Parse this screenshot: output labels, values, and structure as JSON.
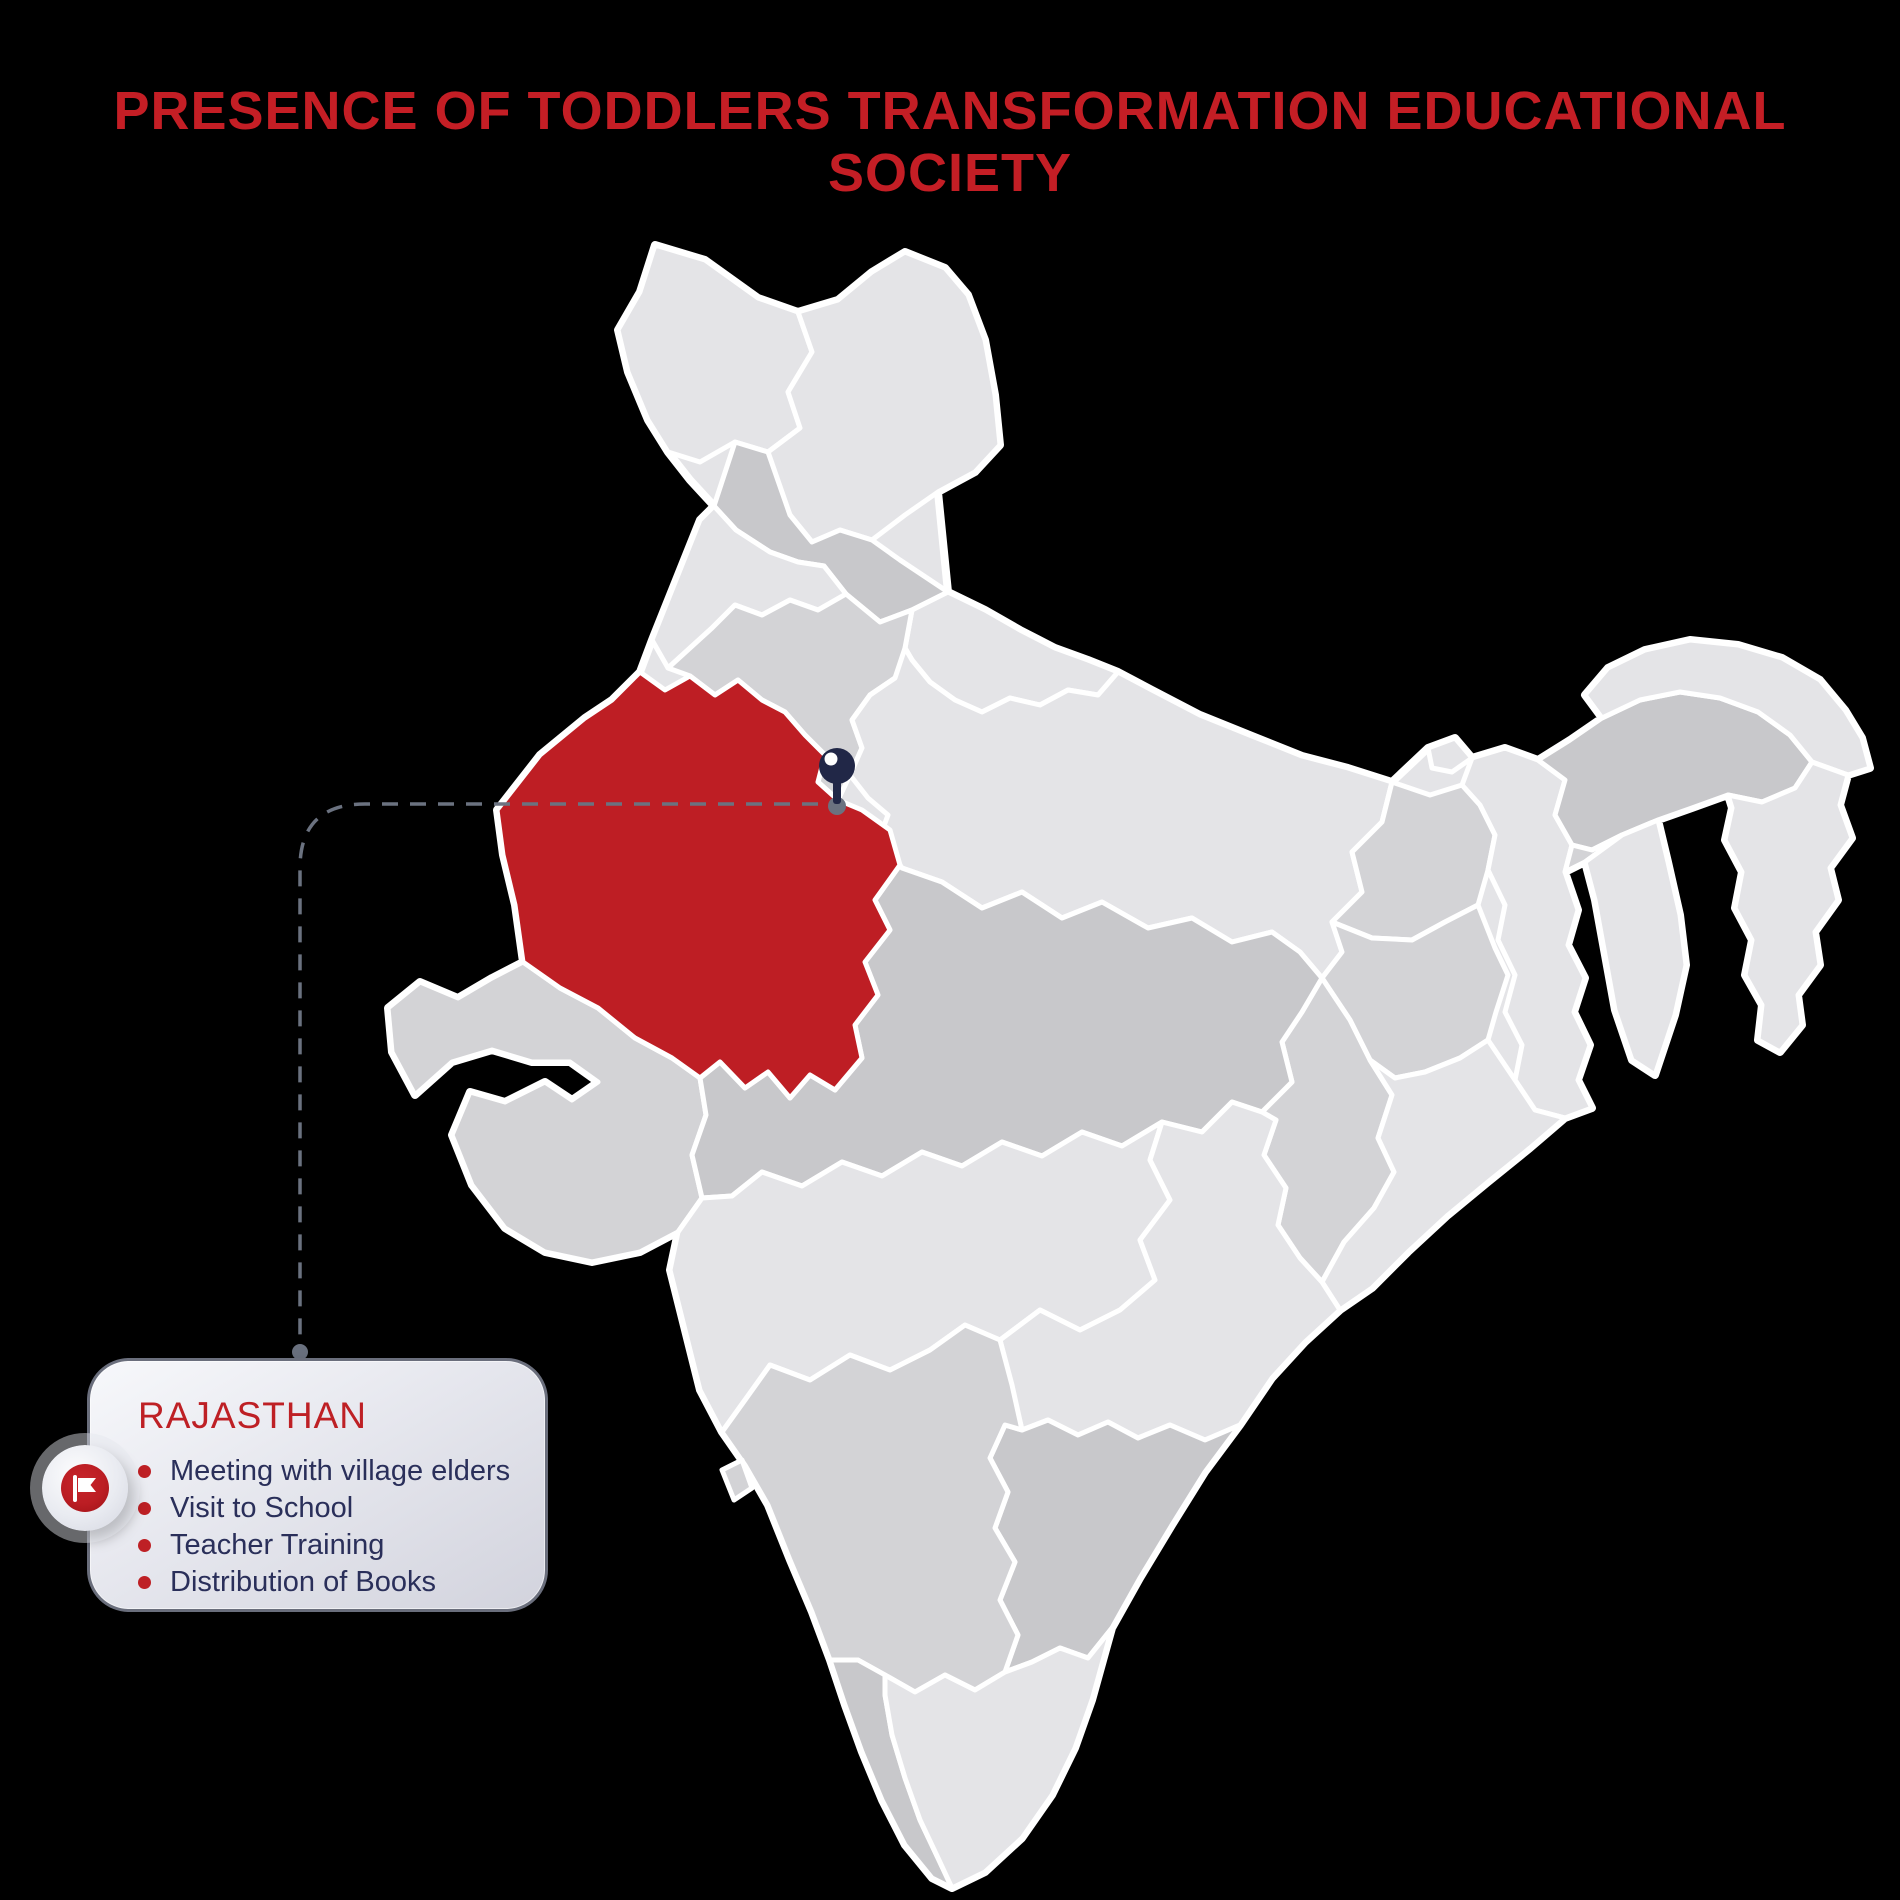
{
  "title": "PRESENCE OF TODDLERS TRANSFORMATION EDUCATIONAL SOCIETY",
  "map": {
    "highlighted_state": "Rajasthan"
  },
  "callout": {
    "region": "RAJASTHAN",
    "items": [
      "Meeting with village elders",
      "Visit to School",
      "Teacher Training",
      "Distribution of Books"
    ]
  },
  "colors": {
    "title_red": "#C41E25",
    "state_red": "#BE1E24",
    "card_title_red": "#BE2025",
    "bullet_red": "#BE2025",
    "text_navy": "#2A2F5A",
    "pin_navy": "#212747",
    "connector_gray": "#6B7280",
    "map_light": "#E4E4E7",
    "map_mid": "#D3D3D6",
    "map_dark": "#C8C8CB"
  }
}
